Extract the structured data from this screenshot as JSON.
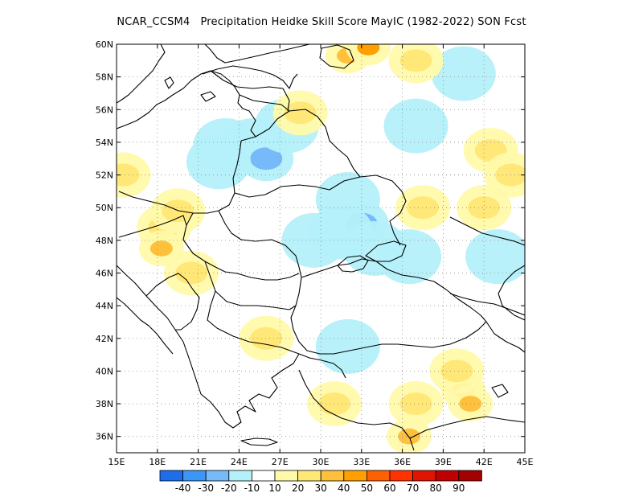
{
  "title": "NCAR_CCSM4   Precipitation Heidke Skill Score MayIC (1982-2022) SON Fcst",
  "map": {
    "lon_range": [
      15,
      45
    ],
    "lat_range": [
      35,
      60
    ],
    "lon_ticks": [
      {
        "value": 15,
        "label": "15E"
      },
      {
        "value": 18,
        "label": "18E"
      },
      {
        "value": 21,
        "label": "21E"
      },
      {
        "value": 24,
        "label": "24E"
      },
      {
        "value": 27,
        "label": "27E"
      },
      {
        "value": 30,
        "label": "30E"
      },
      {
        "value": 33,
        "label": "33E"
      },
      {
        "value": 36,
        "label": "36E"
      },
      {
        "value": 39,
        "label": "39E"
      },
      {
        "value": 42,
        "label": "42E"
      },
      {
        "value": 45,
        "label": "45E"
      }
    ],
    "lat_ticks": [
      {
        "value": 36,
        "label": "36N"
      },
      {
        "value": 38,
        "label": "38N"
      },
      {
        "value": 40,
        "label": "40N"
      },
      {
        "value": 42,
        "label": "42N"
      },
      {
        "value": 44,
        "label": "44N"
      },
      {
        "value": 46,
        "label": "46N"
      },
      {
        "value": 48,
        "label": "48N"
      },
      {
        "value": 50,
        "label": "50N"
      },
      {
        "value": 52,
        "label": "52N"
      },
      {
        "value": 54,
        "label": "54N"
      },
      {
        "value": 56,
        "label": "56N"
      },
      {
        "value": 58,
        "label": "58N"
      },
      {
        "value": 60,
        "label": "60N"
      }
    ],
    "grid": true
  },
  "colorbar": {
    "colors": [
      "#1e6eeb",
      "#3c96f5",
      "#78b9fa",
      "#b4f0fa",
      "#ffffff",
      "#fffaaa",
      "#ffe878",
      "#ffc03c",
      "#ffa000",
      "#ff6000",
      "#ff3200",
      "#e11400",
      "#c00000",
      "#a50000"
    ],
    "labels": [
      "-40",
      "-30",
      "-20",
      "-10",
      "10",
      "20",
      "30",
      "40",
      "50",
      "60",
      "70",
      "80",
      "90"
    ]
  },
  "anomalies": [
    {
      "lon": 23.0,
      "lat": 53.8,
      "value": -10
    },
    {
      "lon": 25.0,
      "lat": 53.8,
      "value": -10
    },
    {
      "lon": 26.0,
      "lat": 53.0,
      "value": -20
    },
    {
      "lon": 22.5,
      "lat": 52.8,
      "value": -10
    },
    {
      "lon": 27.5,
      "lat": 55.0,
      "value": -10
    },
    {
      "lon": 32.0,
      "lat": 50.5,
      "value": -10
    },
    {
      "lon": 33.0,
      "lat": 49.0,
      "value": -20
    },
    {
      "lon": 31.5,
      "lat": 48.5,
      "value": -10
    },
    {
      "lon": 34.0,
      "lat": 47.5,
      "value": -10
    },
    {
      "lon": 36.5,
      "lat": 47.0,
      "value": -10
    },
    {
      "lon": 29.5,
      "lat": 48.0,
      "value": -10
    },
    {
      "lon": 43.0,
      "lat": 47.0,
      "value": -10
    },
    {
      "lon": 37.0,
      "lat": 55.0,
      "value": -10
    },
    {
      "lon": 32.0,
      "lat": 41.5,
      "value": -10
    },
    {
      "lon": 40.5,
      "lat": 58.2,
      "value": -10
    },
    {
      "lon": 18.5,
      "lat": 48.8,
      "value": 20
    },
    {
      "lon": 18.3,
      "lat": 47.5,
      "value": 30
    },
    {
      "lon": 19.5,
      "lat": 49.8,
      "value": 20
    },
    {
      "lon": 26.0,
      "lat": 42.0,
      "value": 20
    },
    {
      "lon": 40.5,
      "lat": 38.8,
      "value": 40
    },
    {
      "lon": 41.0,
      "lat": 38.0,
      "value": 30
    },
    {
      "lon": 40.0,
      "lat": 40.0,
      "value": 20
    },
    {
      "lon": 37.0,
      "lat": 38.0,
      "value": 20
    },
    {
      "lon": 36.5,
      "lat": 36.0,
      "value": 30
    },
    {
      "lon": 37.0,
      "lat": 59.0,
      "value": 20
    },
    {
      "lon": 32.0,
      "lat": 59.3,
      "value": 30
    },
    {
      "lon": 33.5,
      "lat": 59.8,
      "value": 40
    },
    {
      "lon": 37.5,
      "lat": 50.0,
      "value": 20
    },
    {
      "lon": 42.0,
      "lat": 50.0,
      "value": 20
    },
    {
      "lon": 42.5,
      "lat": 53.5,
      "value": 20
    },
    {
      "lon": 15.5,
      "lat": 52.0,
      "value": 20
    },
    {
      "lon": 44.0,
      "lat": 52.0,
      "value": 20
    },
    {
      "lon": 28.5,
      "lat": 55.8,
      "value": 20
    },
    {
      "lon": 31.0,
      "lat": 38.0,
      "value": 20
    },
    {
      "lon": 20.5,
      "lat": 46.0,
      "value": 20
    }
  ]
}
